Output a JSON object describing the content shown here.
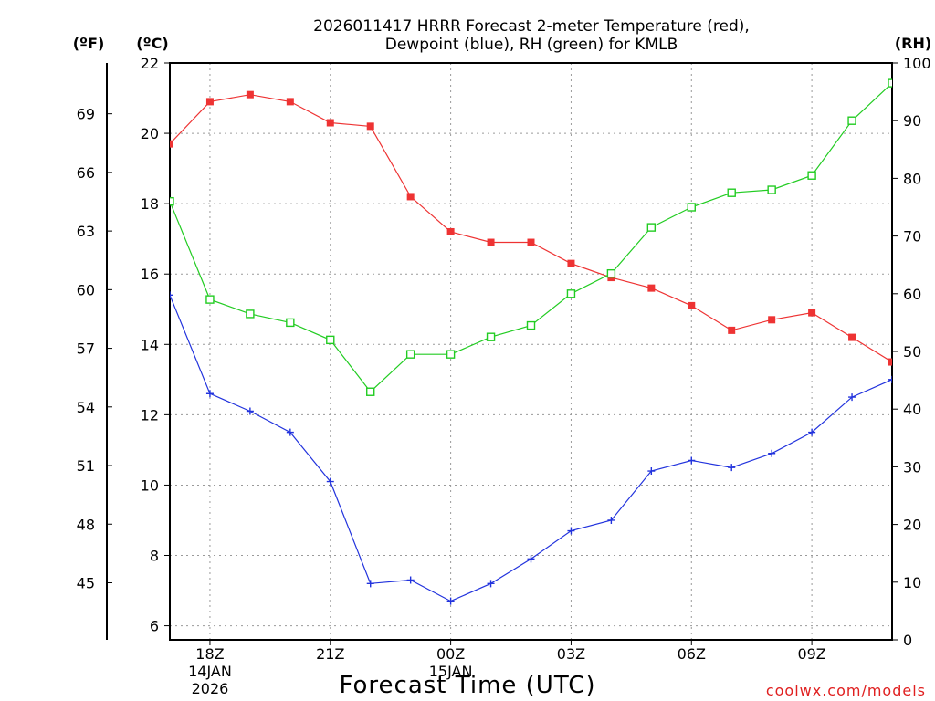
{
  "chart_data": {
    "type": "line",
    "title_line1": "2026011417 HRRR Forecast 2-meter Temperature (red),",
    "title_line2": "Dewpoint (blue), RH (green) for KMLB",
    "xlabel": "Forecast Time (UTC)",
    "credit": "coolwx.com/models",
    "unit_f": "(ºF)",
    "unit_c": "(ºC)",
    "unit_rh": "(RH)",
    "x_hours": [
      17,
      18,
      19,
      20,
      21,
      22,
      23,
      24,
      25,
      26,
      27,
      28,
      29,
      30,
      31,
      32,
      33,
      34,
      35
    ],
    "x_ticks": [
      {
        "hour": 18,
        "label": "18Z",
        "sub1": "14JAN",
        "sub2": "2026"
      },
      {
        "hour": 21,
        "label": "21Z",
        "sub1": "",
        "sub2": ""
      },
      {
        "hour": 24,
        "label": "00Z",
        "sub1": "15JAN",
        "sub2": ""
      },
      {
        "hour": 27,
        "label": "03Z",
        "sub1": "",
        "sub2": ""
      },
      {
        "hour": 30,
        "label": "06Z",
        "sub1": "",
        "sub2": ""
      },
      {
        "hour": 33,
        "label": "09Z",
        "sub1": "",
        "sub2": ""
      }
    ],
    "xlim": [
      17,
      35
    ],
    "ylim_c": [
      5.6,
      22
    ],
    "c_ticks": [
      6,
      8,
      10,
      12,
      14,
      16,
      18,
      20,
      22
    ],
    "f_ticks": [
      45,
      48,
      51,
      54,
      57,
      60,
      63,
      66,
      69
    ],
    "rh_ticks": [
      0,
      10,
      20,
      30,
      40,
      50,
      60,
      70,
      80,
      90,
      100
    ],
    "series": [
      {
        "name": "Temperature",
        "color": "#ee3333",
        "marker": "filled-square",
        "values": [
          19.7,
          20.9,
          21.1,
          20.9,
          20.3,
          20.2,
          18.2,
          17.2,
          16.9,
          16.9,
          16.3,
          15.9,
          15.6,
          15.1,
          14.4,
          14.7,
          14.9,
          14.2,
          13.5
        ]
      },
      {
        "name": "Dewpoint",
        "color": "#2233dd",
        "marker": "plus",
        "values": [
          15.4,
          12.6,
          12.1,
          11.5,
          10.1,
          7.2,
          7.3,
          6.7,
          7.2,
          7.9,
          8.7,
          9.0,
          10.4,
          10.7,
          10.5,
          10.9,
          11.5,
          12.5,
          13.0
        ]
      },
      {
        "name": "RH",
        "color": "#22cc22",
        "marker": "open-square",
        "axis": "rh",
        "values": [
          76,
          59,
          56.5,
          55,
          52,
          43,
          49.5,
          49.5,
          52.5,
          54.5,
          60,
          63.5,
          71.5,
          75,
          77.5,
          78,
          80.5,
          90,
          96.5
        ]
      }
    ]
  }
}
